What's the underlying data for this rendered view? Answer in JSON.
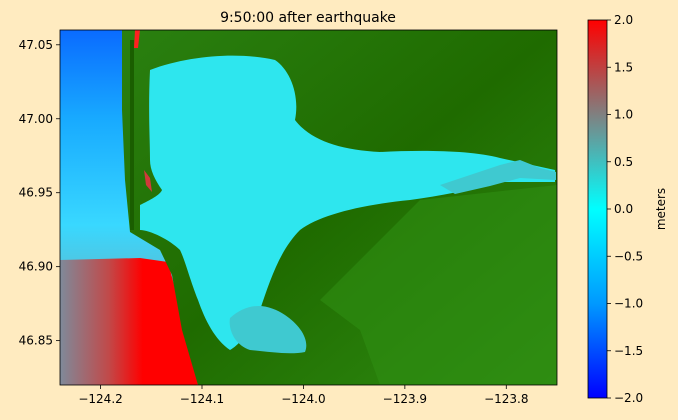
{
  "chart_data": {
    "type": "heatmap",
    "title": "9:50:00 after earthquake",
    "xlim": [
      -124.24,
      -123.75
    ],
    "ylim": [
      46.82,
      47.06
    ],
    "x_ticks": [
      -124.2,
      -124.1,
      -124.0,
      -123.9,
      -123.8
    ],
    "x_tick_labels": [
      "−124.2",
      "−124.1",
      "−124.0",
      "−123.9",
      "−123.8"
    ],
    "y_ticks": [
      46.85,
      46.9,
      46.95,
      47.0,
      47.05
    ],
    "y_tick_labels": [
      "46.85",
      "46.90",
      "46.95",
      "47.00",
      "47.05"
    ],
    "colorbar": {
      "label": "meters",
      "range": [
        -2.0,
        2.0
      ],
      "ticks": [
        2.0,
        1.5,
        1.0,
        0.5,
        0.0,
        -0.5,
        -1.0,
        -1.5,
        -2.0
      ],
      "tick_labels": [
        "2.0",
        "1.5",
        "1.0",
        "0.5",
        "0.0",
        "−0.5",
        "−1.0",
        "−1.5",
        "−2.0"
      ],
      "colormap": [
        "#0000ff",
        "#0099ff",
        "#00ffff",
        "#808080",
        "#ff0000"
      ]
    },
    "land_colors": [
      "#1f6b00",
      "#2e8a10",
      "#3f9e22"
    ],
    "water_color": "#2ee6ee"
  }
}
